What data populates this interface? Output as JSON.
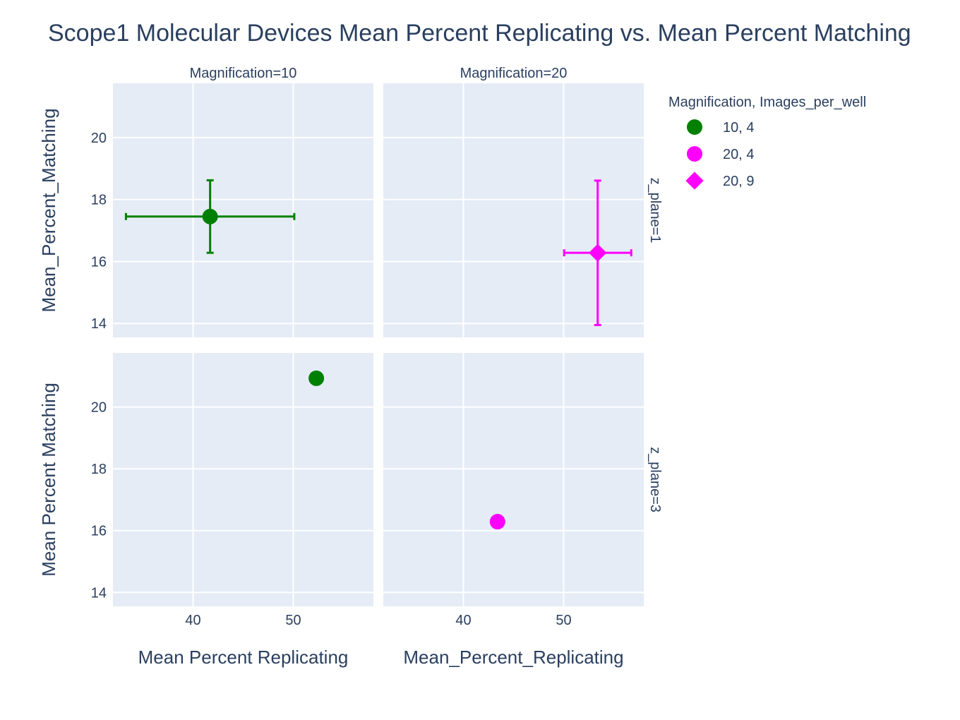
{
  "chart_data": {
    "type": "scatter",
    "title": "Scope1 Molecular Devices Mean Percent Replicating vs. Mean Percent Matching",
    "xlim": [
      32,
      58
    ],
    "ylim": [
      13.55,
      21.75
    ],
    "x_ticks": [
      40,
      50
    ],
    "y_ticks": [
      14,
      16,
      18,
      20
    ],
    "grid": true,
    "legend": {
      "title": "Magnification, Images_per_well",
      "position": "top-right",
      "entries": [
        {
          "label": "10, 4",
          "color": "#008000",
          "symbol": "circle"
        },
        {
          "label": "20, 4",
          "color": "#ff00ff",
          "symbol": "circle"
        },
        {
          "label": "20, 9",
          "color": "#ff00ff",
          "symbol": "diamond"
        }
      ]
    },
    "column_titles": [
      "Magnification=10",
      "Magnification=20"
    ],
    "row_titles": [
      "z_plane=1",
      "z_plane=3"
    ],
    "x_axis_titles": [
      "Mean Percent Replicating",
      "Mean_Percent_Replicating"
    ],
    "y_axis_titles": [
      "Mean_Percent_Matching",
      "Mean Percent Matching"
    ],
    "panels": [
      {
        "row": 0,
        "col": 0,
        "points": [
          {
            "series": "10, 4",
            "x": 41.7,
            "y": 17.45,
            "x_err": [
              8.4,
              8.4
            ],
            "y_err": [
              1.17,
              1.17
            ]
          }
        ]
      },
      {
        "row": 0,
        "col": 1,
        "points": [
          {
            "series": "20, 9",
            "x": 53.4,
            "y": 16.28,
            "x_err": [
              3.35,
              3.35
            ],
            "y_err": [
              2.33,
              2.33
            ]
          }
        ]
      },
      {
        "row": 1,
        "col": 0,
        "points": [
          {
            "series": "10, 4",
            "x": 52.3,
            "y": 20.93
          }
        ]
      },
      {
        "row": 1,
        "col": 1,
        "points": [
          {
            "series": "20, 4",
            "x": 43.4,
            "y": 16.29
          }
        ]
      }
    ]
  }
}
